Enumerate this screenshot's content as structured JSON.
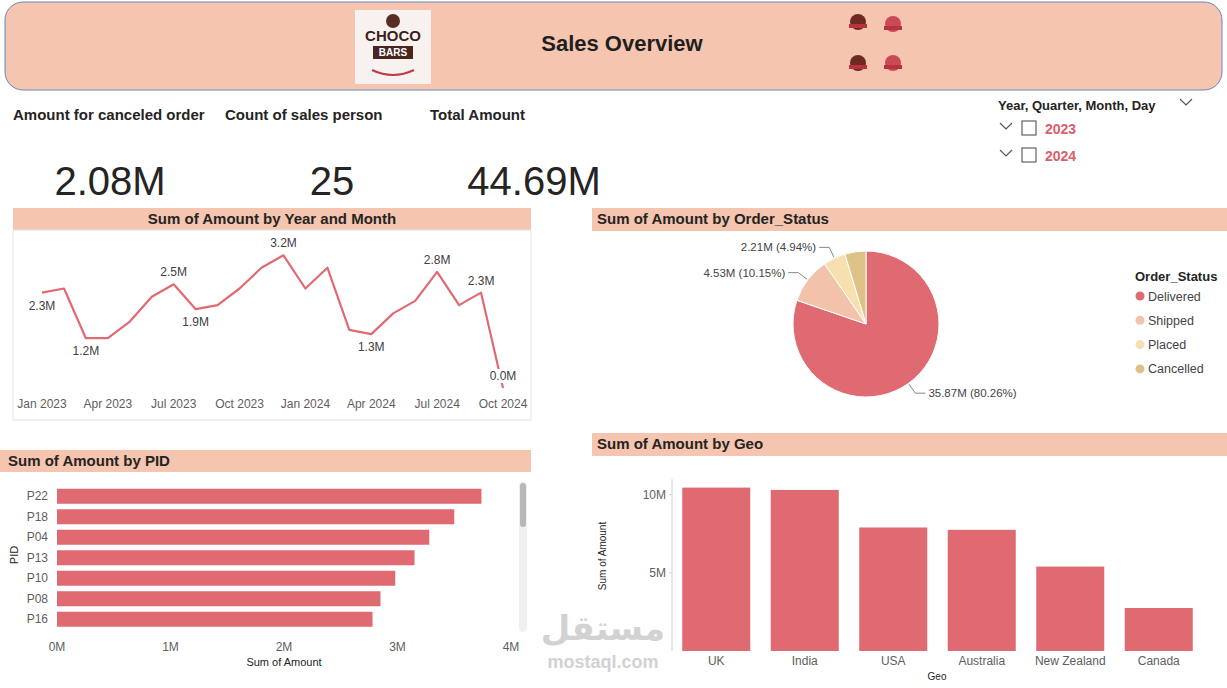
{
  "header": {
    "title": "Sales Overview",
    "logo": [
      "CHOCO",
      "BARS"
    ]
  },
  "kpis": [
    {
      "label": "Amount for canceled order",
      "value": "2.08M"
    },
    {
      "label": "Count of sales person",
      "value": "25"
    },
    {
      "label": "Total Amount",
      "value": "44.69M"
    }
  ],
  "slicer": {
    "title": "Year, Quarter, Month, Day",
    "items": [
      "2023",
      "2024"
    ]
  },
  "watermark": [
    "مستقل",
    "mostaql.com"
  ],
  "chart_data": [
    {
      "type": "line",
      "title": "Sum of Amount by Year and Month",
      "categories": [
        "Jan 2023",
        null,
        null,
        "Apr 2023",
        null,
        null,
        "Jul 2023",
        null,
        null,
        "Oct 2023",
        null,
        null,
        "Jan 2024",
        null,
        null,
        "Apr 2024",
        null,
        null,
        "Jul 2024",
        null,
        null,
        "Oct 2024"
      ],
      "values": [
        2.3,
        2.4,
        1.2,
        1.2,
        1.6,
        2.2,
        2.5,
        1.9,
        2.0,
        2.4,
        2.9,
        3.2,
        2.4,
        2.9,
        1.4,
        1.3,
        1.8,
        2.1,
        2.8,
        2.0,
        2.3,
        0.0
      ],
      "value_labels": [
        "2.3M",
        null,
        "1.2M",
        null,
        null,
        null,
        "2.5M",
        "1.9M",
        null,
        null,
        null,
        "3.2M",
        null,
        null,
        null,
        "1.3M",
        null,
        null,
        "2.8M",
        null,
        "2.3M",
        "0.0M"
      ],
      "data_labels": true,
      "color": "#e06a72",
      "ylim": [
        0,
        3.4
      ],
      "tick_labels": "x",
      "grid": false
    },
    {
      "type": "pie",
      "title": "Sum of Amount by Order_Status",
      "legend_title": "Order_Status",
      "categories": [
        "Delivered",
        "Shipped",
        "Placed",
        "Cancelled"
      ],
      "values": [
        35.87,
        4.53,
        2.21,
        2.08
      ],
      "value_labels": [
        "35.87M (80.26%)",
        "4.53M (10.15%)",
        "2.21M (4.94%)",
        null
      ],
      "colors": [
        "#e06a72",
        "#f3c2ab",
        "#f6e0b0",
        "#dcc286"
      ],
      "data_labels": true,
      "legend": "right"
    },
    {
      "type": "bar",
      "orientation": "horizontal",
      "title": "Sum of Amount by PID",
      "x_label": "Sum of Amount",
      "y_label": "PID",
      "categories": [
        "P22",
        "P18",
        "P04",
        "P13",
        "P10",
        "P08",
        "P16"
      ],
      "values": [
        3.74,
        3.5,
        3.28,
        3.15,
        2.98,
        2.85,
        2.78
      ],
      "color": "#e06a72",
      "xlim": [
        0,
        4
      ],
      "xticks": [
        {
          "value": 0,
          "label": "0M"
        },
        {
          "value": 1,
          "label": "1M"
        },
        {
          "value": 2,
          "label": "2M"
        },
        {
          "value": 3,
          "label": "3M"
        },
        {
          "value": 4,
          "label": "4M"
        }
      ],
      "grid": false
    },
    {
      "type": "bar",
      "title": "Sum of Amount by Geo",
      "x_label": "Geo",
      "y_label": "Sum of Amount",
      "categories": [
        "UK",
        "India",
        "USA",
        "Australia",
        "New Zealand",
        "Canada"
      ],
      "values": [
        10.45,
        10.3,
        7.9,
        7.75,
        5.4,
        2.75
      ],
      "color": "#e06a72",
      "ylim": [
        0,
        11
      ],
      "yticks": [
        {
          "value": 5,
          "label": "5M"
        },
        {
          "value": 10,
          "label": "10M"
        }
      ],
      "grid": false
    }
  ]
}
